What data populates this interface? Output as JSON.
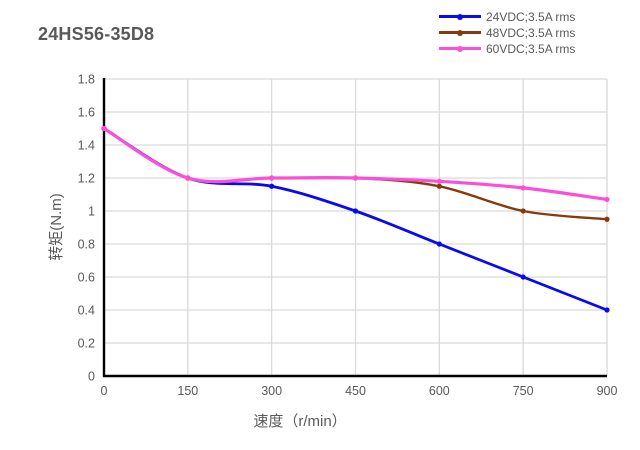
{
  "title": "24HS56-35D8",
  "chart_data": {
    "type": "line",
    "title": "24HS56-35D8",
    "xlabel": "速度（r/min）",
    "ylabel": "转矩(N.m)",
    "x": [
      0,
      150,
      300,
      450,
      600,
      750,
      900
    ],
    "series": [
      {
        "name": "24VDC;3.5A rms",
        "color": "#0A0AF0",
        "values": [
          1.5,
          1.2,
          1.15,
          1.0,
          0.8,
          0.6,
          0.4
        ]
      },
      {
        "name": "48VDC;3.5A rms",
        "color": "#843C0C",
        "values": [
          1.5,
          1.2,
          1.2,
          1.2,
          1.15,
          1.0,
          0.95
        ]
      },
      {
        "name": "60VDC;3.5A rms",
        "color": "#FB4FD8",
        "values": [
          1.5,
          1.2,
          1.2,
          1.2,
          1.18,
          1.14,
          1.07
        ]
      }
    ],
    "xlim": [
      0,
      900
    ],
    "ylim": [
      0,
      1.8
    ],
    "xticks": [
      0,
      150,
      300,
      450,
      600,
      750,
      900
    ],
    "yticks": [
      0,
      0.2,
      0.4,
      0.6,
      0.8,
      1,
      1.2,
      1.4,
      1.6,
      1.8
    ],
    "grid": true,
    "legend_position": "top-right",
    "line_style": "smooth",
    "marker": "dot",
    "colors": {
      "grid": "#D9D9D9",
      "axis": "#000000",
      "text": "#595959"
    }
  }
}
